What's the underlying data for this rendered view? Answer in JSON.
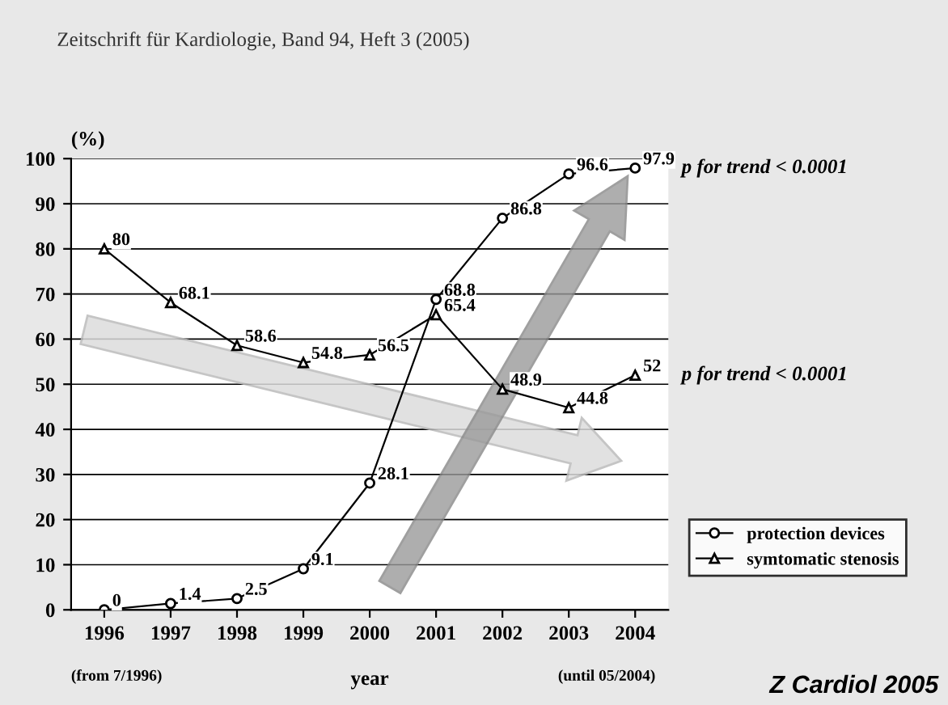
{
  "chart_data": {
    "type": "line",
    "title": "Zeitschrift für Kardiologie, Band 94, Heft 3 (2005)",
    "ylabel": "(%)",
    "xlabel": "year",
    "categories": [
      "1996",
      "1997",
      "1998",
      "1999",
      "2000",
      "2001",
      "2002",
      "2003",
      "2004"
    ],
    "series": [
      {
        "name": "protection devices",
        "color": "#000000",
        "marker": "circle",
        "values": [
          0,
          1.4,
          2.5,
          9.1,
          28.1,
          68.8,
          86.8,
          96.6,
          97.9
        ]
      },
      {
        "name": "symtomatic stenosis",
        "color": "#000000",
        "marker": "triangle",
        "values": [
          80,
          68.1,
          58.6,
          54.8,
          56.5,
          65.4,
          48.9,
          44.8,
          52
        ]
      }
    ],
    "ylim": [
      0,
      100
    ],
    "yticks": [
      0,
      10,
      20,
      30,
      40,
      50,
      60,
      70,
      80,
      90,
      100
    ],
    "grid": "y",
    "legend": "right",
    "data_labels": true,
    "line_style": "solid",
    "annotations": [
      {
        "text": "p for trend < 0.0001",
        "x": "2004",
        "y": 97.9
      },
      {
        "text": "p for trend < 0.0001",
        "x": "2004",
        "y": 52
      },
      "(from 7/1996)",
      "(until 05/2004)",
      "Z Cardiol 2005"
    ]
  }
}
